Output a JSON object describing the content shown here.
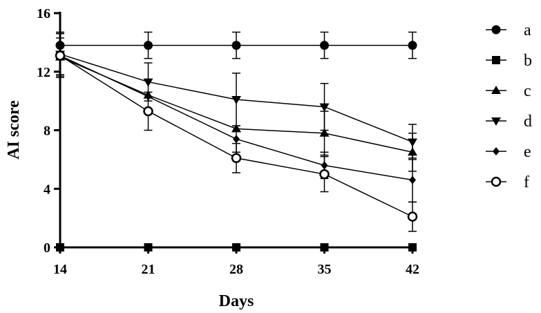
{
  "chart_data": {
    "type": "line",
    "title": "",
    "xlabel": "Days",
    "ylabel": "AI score",
    "x": [
      14,
      21,
      28,
      35,
      42
    ],
    "xticks": [
      "14",
      "21",
      "28",
      "35",
      "42"
    ],
    "ylim": [
      0,
      16
    ],
    "yticks": [
      "0",
      "4",
      "8",
      "12",
      "16"
    ],
    "grid": false,
    "legend_position": "right",
    "series": [
      {
        "name": "a",
        "marker": "circle-filled",
        "values": [
          13.8,
          13.8,
          13.8,
          13.8,
          13.8
        ],
        "errors": [
          0.9,
          0.9,
          0.9,
          0.9,
          0.9
        ]
      },
      {
        "name": "b",
        "marker": "square-filled",
        "values": [
          0,
          0,
          0,
          0,
          0
        ],
        "errors": [
          0,
          0,
          0,
          0,
          0
        ]
      },
      {
        "name": "c",
        "marker": "triangle-up",
        "values": [
          13.0,
          10.4,
          8.1,
          7.8,
          6.5
        ],
        "errors": [
          1.3,
          0.0,
          0.0,
          1.5,
          1.3
        ]
      },
      {
        "name": "d",
        "marker": "triangle-down",
        "values": [
          13.2,
          11.3,
          10.1,
          9.6,
          7.2
        ],
        "errors": [
          1.4,
          1.3,
          1.8,
          1.6,
          1.2
        ]
      },
      {
        "name": "e",
        "marker": "diamond",
        "values": [
          13.1,
          10.3,
          7.4,
          5.6,
          4.6
        ],
        "errors": [
          1.5,
          0.0,
          0.9,
          0.9,
          1.5
        ]
      },
      {
        "name": "f",
        "marker": "circle-open",
        "values": [
          13.1,
          9.3,
          6.1,
          5.0,
          2.1
        ],
        "errors": [
          1.5,
          1.3,
          1.0,
          1.2,
          1.0
        ]
      }
    ]
  }
}
